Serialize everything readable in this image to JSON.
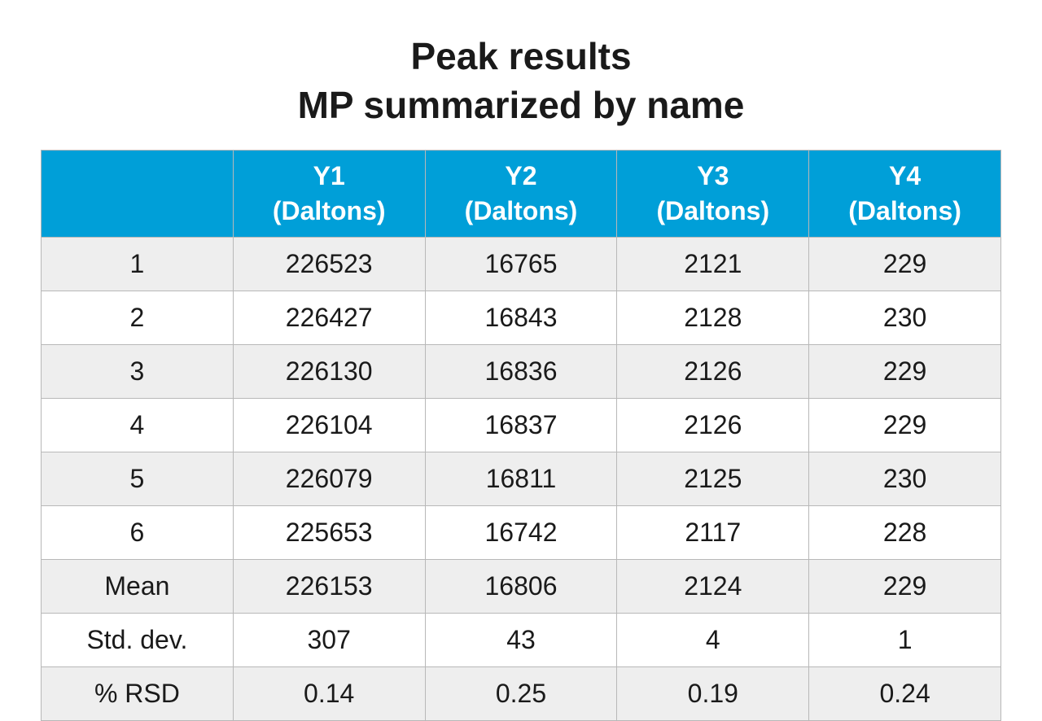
{
  "title": {
    "line1": "Peak results",
    "line2": "MP summarized by name"
  },
  "table": {
    "type": "table",
    "header_bg_color": "#009fd8",
    "header_text_color": "#ffffff",
    "odd_row_bg": "#eeeeee",
    "even_row_bg": "#ffffff",
    "border_color": "#b8b8b8",
    "font_size_header": 32,
    "font_size_body": 32,
    "columns": [
      {
        "label_top": "",
        "label_bottom": ""
      },
      {
        "label_top": "Y1",
        "label_bottom": "(Daltons)"
      },
      {
        "label_top": "Y2",
        "label_bottom": "(Daltons)"
      },
      {
        "label_top": "Y3",
        "label_bottom": "(Daltons)"
      },
      {
        "label_top": "Y4",
        "label_bottom": "(Daltons)"
      }
    ],
    "rows": [
      {
        "label": "1",
        "y1": "226523",
        "y2": "16765",
        "y3": "2121",
        "y4": "229"
      },
      {
        "label": "2",
        "y1": "226427",
        "y2": "16843",
        "y3": "2128",
        "y4": "230"
      },
      {
        "label": "3",
        "y1": "226130",
        "y2": "16836",
        "y3": "2126",
        "y4": "229"
      },
      {
        "label": "4",
        "y1": "226104",
        "y2": "16837",
        "y3": "2126",
        "y4": "229"
      },
      {
        "label": "5",
        "y1": "226079",
        "y2": "16811",
        "y3": "2125",
        "y4": "230"
      },
      {
        "label": "6",
        "y1": "225653",
        "y2": "16742",
        "y3": "2117",
        "y4": "228"
      },
      {
        "label": "Mean",
        "y1": "226153",
        "y2": "16806",
        "y3": "2124",
        "y4": "229"
      },
      {
        "label": "Std. dev.",
        "y1": "307",
        "y2": "43",
        "y3": "4",
        "y4": "1"
      },
      {
        "label": "% RSD",
        "y1": "0.14",
        "y2": "0.25",
        "y3": "0.19",
        "y4": "0.24"
      }
    ]
  }
}
